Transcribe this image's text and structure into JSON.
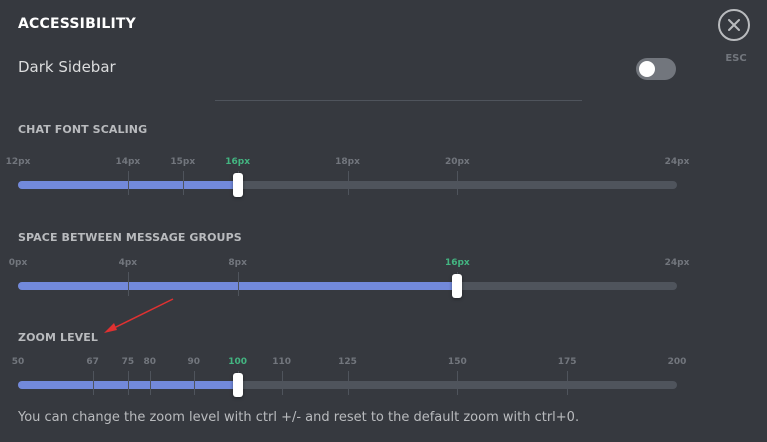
{
  "header": {
    "title": "ACCESSIBILITY",
    "esc_label": "ESC",
    "close_icon": "close-icon"
  },
  "dark_sidebar": {
    "label": "Dark Sidebar",
    "enabled": false
  },
  "font_scaling": {
    "title": "CHAT FONT SCALING",
    "ticks": [
      "12px",
      "14px",
      "15px",
      "16px",
      "18px",
      "20px",
      "24px"
    ],
    "tick_values": [
      12,
      14,
      15,
      16,
      18,
      20,
      24
    ],
    "min": 12,
    "max": 24,
    "value": 16,
    "selected_label": "16px"
  },
  "message_spacing": {
    "title": "SPACE BETWEEN MESSAGE GROUPS",
    "ticks": [
      "0px",
      "4px",
      "8px",
      "16px",
      "24px"
    ],
    "tick_values": [
      0,
      4,
      8,
      16,
      24
    ],
    "min": 0,
    "max": 24,
    "value": 16,
    "selected_label": "16px"
  },
  "zoom": {
    "title": "ZOOM LEVEL",
    "ticks": [
      "50",
      "67",
      "75",
      "80",
      "90",
      "100",
      "110",
      "125",
      "150",
      "175",
      "200"
    ],
    "tick_values": [
      50,
      67,
      75,
      80,
      90,
      100,
      110,
      125,
      150,
      175,
      200
    ],
    "min": 50,
    "max": 200,
    "value": 100,
    "selected_label": "100",
    "helper": "You can change the zoom level with ctrl +/- and reset to the default zoom with ctrl+0."
  },
  "colors": {
    "background": "#36393f",
    "fill": "#7289da",
    "track": "#4f545c",
    "active_tick": "#43b581",
    "annotation_arrow": "#e03131"
  }
}
